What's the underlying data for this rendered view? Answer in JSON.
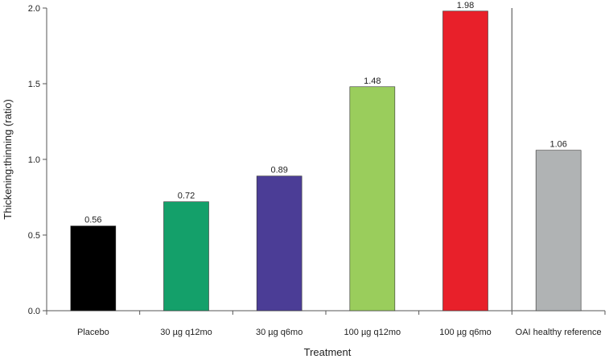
{
  "chart_data": {
    "type": "bar",
    "categories": [
      "Placebo",
      "30 µg q12mo",
      "30 µg q6mo",
      "100 µg q12mo",
      "100 µg q6mo",
      "OAI healthy reference"
    ],
    "values": [
      0.56,
      0.72,
      0.89,
      1.48,
      1.98,
      1.06
    ],
    "data_labels": [
      "0.56",
      "0.72",
      "0.89",
      "1.48",
      "1.98",
      "1.06"
    ],
    "colors": [
      "#000000",
      "#14a06a",
      "#4b3d96",
      "#9acd5c",
      "#e8202a",
      "#b0b3b4"
    ],
    "title": "",
    "xlabel": "Treatment",
    "ylabel": "Thickening:thinning (ratio)",
    "ylim": [
      0,
      2.0
    ],
    "yticks": [
      "0.0",
      "0.5",
      "1.0",
      "1.5",
      "2.0"
    ],
    "ytick_values": [
      0,
      0.5,
      1.0,
      1.5,
      2.0
    ],
    "separator_before_index": 5,
    "grid": false,
    "legend": "none"
  }
}
